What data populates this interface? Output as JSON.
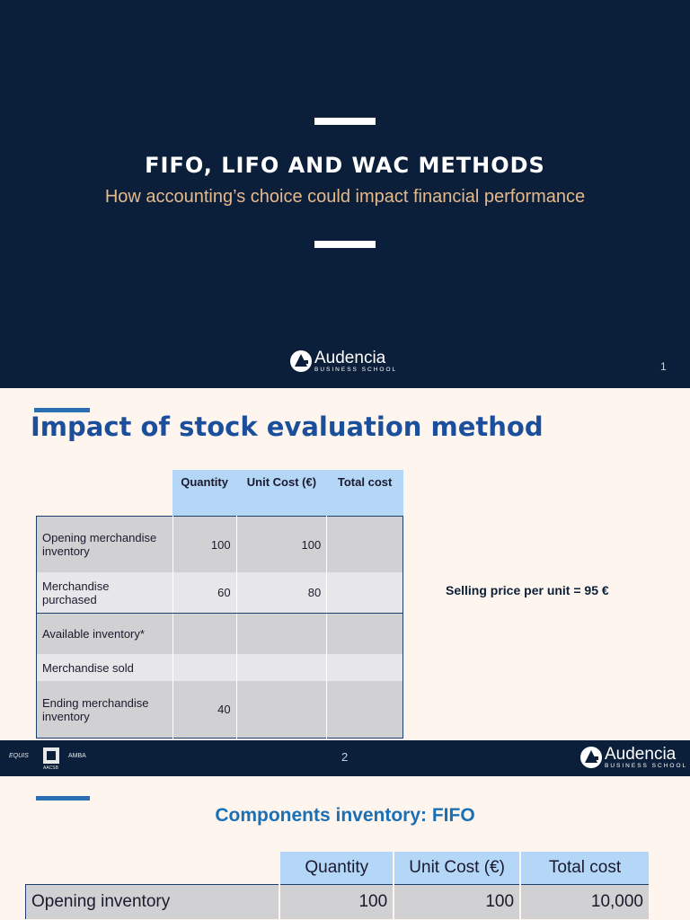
{
  "slide1": {
    "title": "FIFO, LIFO AND WAC METHODS",
    "subtitle": "How accounting’s choice could impact financial performance",
    "page_number": "1",
    "logo": {
      "name": "Audencia",
      "tagline": "BUSINESS SCHOOL"
    }
  },
  "slide2": {
    "title": "Impact of stock evaluation method",
    "table": {
      "headers": [
        "",
        "Quantity",
        "Unit Cost (€)",
        "Total cost"
      ],
      "rows": [
        [
          "Opening merchandise inventory",
          "100",
          "100",
          ""
        ],
        [
          "Merchandise purchased",
          "60",
          "80",
          ""
        ],
        [
          "Available inventory*",
          "",
          "",
          ""
        ],
        [
          "Merchandise sold",
          "",
          "",
          ""
        ],
        [
          "Ending merchandise inventory",
          "40",
          "",
          ""
        ]
      ]
    },
    "selling_price": "Selling price per unit = 95 €",
    "page_number": "2",
    "accreditations": {
      "equis": "EQUIS",
      "aacsb": "AACSB",
      "amba": "AMBA"
    },
    "logo": {
      "name": "Audencia",
      "tagline": "BUSINESS SCHOOL"
    }
  },
  "slide3": {
    "title": "Components inventory: FIFO",
    "table": {
      "headers": [
        "",
        "Quantity",
        "Unit Cost (€)",
        "Total cost"
      ],
      "rows": [
        [
          "Opening inventory",
          "100",
          "100",
          "10,000"
        ]
      ]
    }
  },
  "colors": {
    "navy": "#0c1f3a",
    "subtitle_gold": "#e6b98b",
    "title_blue": "#1b4f9c",
    "header_blue": "#b4d6f7",
    "cream": "#fdf5ee"
  }
}
